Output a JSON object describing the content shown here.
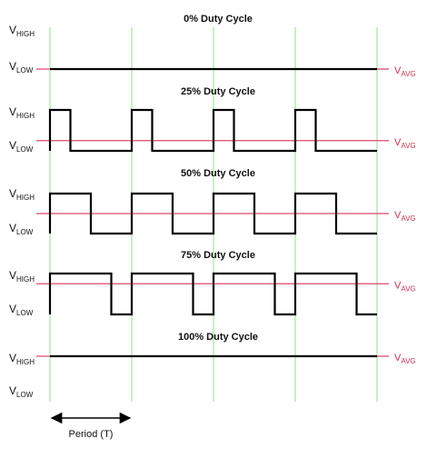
{
  "colors": {
    "background": "#ffffff",
    "signal": "#000000",
    "average_line": "#d9496a",
    "average_label": "#c8334f",
    "period_gridline": "#8fe08a",
    "text": "#111111"
  },
  "labels": {
    "v_high": {
      "main": "V",
      "sub": "HIGH"
    },
    "v_low": {
      "main": "V",
      "sub": "LOW"
    },
    "v_avg": {
      "main": "V",
      "sub": "AVG"
    }
  },
  "period_marker": {
    "label": "Period (T)",
    "arrow": "double-headed-arrow"
  },
  "period_count": 4,
  "waveforms": [
    {
      "title": "0% Duty Cycle",
      "duty_cycle": 0.0
    },
    {
      "title": "25% Duty Cycle",
      "duty_cycle": 0.25
    },
    {
      "title": "50% Duty Cycle",
      "duty_cycle": 0.5
    },
    {
      "title": "75% Duty Cycle",
      "duty_cycle": 0.75
    },
    {
      "title": "100% Duty Cycle",
      "duty_cycle": 1.0
    }
  ]
}
